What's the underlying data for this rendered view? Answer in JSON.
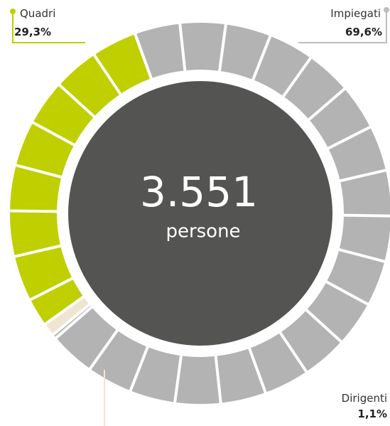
{
  "chart_data": {
    "type": "pie",
    "categories": [
      "Impiegati",
      "Dirigenti",
      "Quadri"
    ],
    "values": [
      69.6,
      1.1,
      29.3
    ],
    "value_labels": [
      "69,6%",
      "1,1%",
      "29,3%"
    ],
    "colors": [
      "#b3b3b3",
      "#efe5d2",
      "#bfcf00"
    ],
    "total_label": "3.551",
    "total_caption": "persone"
  }
}
